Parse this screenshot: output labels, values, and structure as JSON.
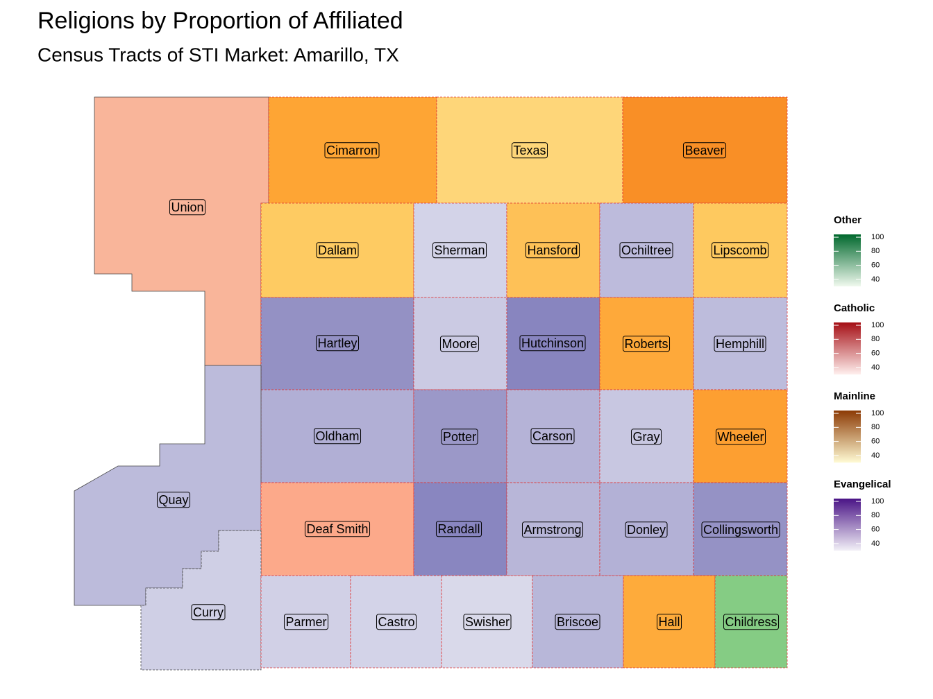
{
  "title": "Religions by Proportion of Affiliated",
  "subtitle": "Census Tracts of STI Market: Amarillo, TX",
  "counties": [
    {
      "name": "Union",
      "color": "#f9b59a"
    },
    {
      "name": "Cimarron",
      "color": "#fea534"
    },
    {
      "name": "Texas",
      "color": "#fed679"
    },
    {
      "name": "Beaver",
      "color": "#f98f26"
    },
    {
      "name": "Dallam",
      "color": "#fecb62"
    },
    {
      "name": "Sherman",
      "color": "#d3d3e8"
    },
    {
      "name": "Hansford",
      "color": "#fec157"
    },
    {
      "name": "Ochiltree",
      "color": "#bdbbdc"
    },
    {
      "name": "Lipscomb",
      "color": "#fec95f"
    },
    {
      "name": "Hartley",
      "color": "#9491c4"
    },
    {
      "name": "Moore",
      "color": "#cbcae3"
    },
    {
      "name": "Hutchinson",
      "color": "#8885bf"
    },
    {
      "name": "Roberts",
      "color": "#fea93a"
    },
    {
      "name": "Hemphill",
      "color": "#bdbcdc"
    },
    {
      "name": "Oldham",
      "color": "#b1afd5"
    },
    {
      "name": "Potter",
      "color": "#9b98c8"
    },
    {
      "name": "Carson",
      "color": "#b5b3d7"
    },
    {
      "name": "Gray",
      "color": "#c8c7e1"
    },
    {
      "name": "Wheeler",
      "color": "#fd9f31"
    },
    {
      "name": "Quay",
      "color": "#bcbbdb"
    },
    {
      "name": "Deaf Smith",
      "color": "#fca98a"
    },
    {
      "name": "Randall",
      "color": "#8986c0"
    },
    {
      "name": "Armstrong",
      "color": "#b8b6d8"
    },
    {
      "name": "Donley",
      "color": "#b3b1d6"
    },
    {
      "name": "Collingsworth",
      "color": "#9592c5"
    },
    {
      "name": "Curry",
      "color": "#cfcfe5"
    },
    {
      "name": "Parmer",
      "color": "#d1d0e6"
    },
    {
      "name": "Castro",
      "color": "#d3d3e8"
    },
    {
      "name": "Swisher",
      "color": "#d9d9ea"
    },
    {
      "name": "Briscoe",
      "color": "#b8b7d9"
    },
    {
      "name": "Hall",
      "color": "#feab3b"
    },
    {
      "name": "Childress",
      "color": "#85cc84"
    }
  ],
  "legends": [
    {
      "title": "Other",
      "colors": [
        "#00682d",
        "#f0f9ee"
      ],
      "lim": [
        30,
        104
      ],
      "ticks": [
        100,
        80,
        60,
        40
      ]
    },
    {
      "title": "Catholic",
      "colors": [
        "#a50f15",
        "#fff0ee"
      ],
      "lim": [
        30,
        104
      ],
      "ticks": [
        100,
        80,
        60,
        40
      ]
    },
    {
      "title": "Mainline",
      "colors": [
        "#8c3a04",
        "#fffbd4"
      ],
      "lim": [
        30,
        104
      ],
      "ticks": [
        100,
        80,
        60,
        40
      ]
    },
    {
      "title": "Evangelical",
      "colors": [
        "#4a1486",
        "#f2f0f7"
      ],
      "lim": [
        30,
        104
      ],
      "ticks": [
        100,
        80,
        60,
        40
      ]
    }
  ]
}
